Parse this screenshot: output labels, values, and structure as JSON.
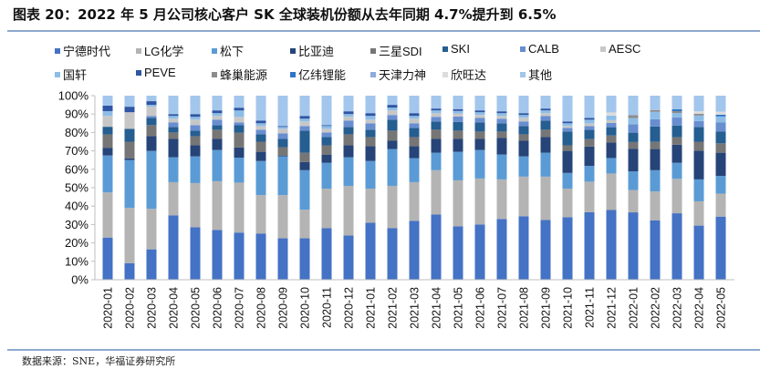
{
  "header": {
    "title": "图表 20：2022 年 5 月公司核心客户 SK 全球装机份额从去年同期 4.7%提升到 6.5%"
  },
  "footer": {
    "source": "数据来源：SNE，华福证券研究所"
  },
  "chart_data": {
    "type": "bar",
    "stacked": true,
    "normalized": true,
    "title": "2022 年 5 月公司核心客户 SK 全球装机份额从去年同期 4.7%提升到 6.5%",
    "xlabel": "",
    "ylabel": "",
    "ylim": [
      0,
      100
    ],
    "y_ticks": [
      "0%",
      "10%",
      "20%",
      "30%",
      "40%",
      "50%",
      "60%",
      "70%",
      "80%",
      "90%",
      "100%"
    ],
    "grid": false,
    "legend_position": "top",
    "categories": [
      "2020-01",
      "2020-02",
      "2020-03",
      "2020-04",
      "2020-05",
      "2020-06",
      "2020-07",
      "2020-08",
      "2020-09",
      "2020-10",
      "2020-11",
      "2020-12",
      "2021-01",
      "2021-02",
      "2021-03",
      "2021-04",
      "2021-05",
      "2021-06",
      "2021-07",
      "2021-08",
      "2021-09",
      "2021-10",
      "2021-11",
      "2021-12",
      "2022-01",
      "2022-02",
      "2022-03",
      "2022-04",
      "2022-05"
    ],
    "series": [
      {
        "name": "宁德时代",
        "color": "#4472C4",
        "values": [
          22.9,
          9.0,
          16.5,
          35.0,
          28.5,
          27.0,
          25.5,
          25.0,
          22.5,
          22.5,
          28.0,
          24.0,
          31.0,
          28.0,
          32.0,
          35.5,
          29.0,
          30.0,
          33.0,
          34.5,
          32.5,
          34.0,
          36.5,
          37.8,
          36.6,
          32.2,
          36.1,
          29.4,
          34.3
        ]
      },
      {
        "name": "LG化学",
        "color": "#B4B4B4",
        "values": [
          24.5,
          30.0,
          22.0,
          18.0,
          24.0,
          26.5,
          27.0,
          21.0,
          23.5,
          15.5,
          21.5,
          27.0,
          18.5,
          23.0,
          21.0,
          24.0,
          25.0,
          25.0,
          21.5,
          21.5,
          23.5,
          15.5,
          16.5,
          19.8,
          12.1,
          15.8,
          18.7,
          13.2,
          12.5
        ]
      },
      {
        "name": "松下",
        "color": "#5B9BD5",
        "values": [
          20.1,
          26.0,
          31.5,
          13.5,
          14.5,
          17.0,
          13.5,
          18.5,
          21.0,
          21.5,
          14.0,
          15.5,
          15.0,
          20.0,
          13.0,
          9.5,
          15.5,
          15.5,
          13.5,
          11.0,
          13.0,
          8.5,
          8.5,
          8.4,
          10.2,
          11.5,
          8.7,
          11.9,
          9.6
        ]
      },
      {
        "name": "比亚迪",
        "color": "#264478",
        "values": [
          4.2,
          1.0,
          8.0,
          10.0,
          6.0,
          6.0,
          5.5,
          5.0,
          0.5,
          4.5,
          4.5,
          6.5,
          8.0,
          4.5,
          6.5,
          7.5,
          7.0,
          6.0,
          9.0,
          8.5,
          8.5,
          12.0,
          10.5,
          8.4,
          12.3,
          11.5,
          9.9,
          15.6,
          12.6
        ]
      },
      {
        "name": "三星SDI",
        "color": "#767676",
        "values": [
          7.2,
          9.0,
          6.0,
          3.5,
          5.0,
          5.0,
          8.0,
          5.5,
          4.5,
          5.0,
          5.0,
          6.0,
          5.0,
          5.5,
          5.0,
          5.0,
          4.5,
          4.0,
          3.5,
          3.5,
          4.0,
          3.0,
          4.0,
          3.8,
          3.6,
          3.9,
          4.0,
          4.9,
          5.1
        ]
      },
      {
        "name": "SKI",
        "color": "#255E91",
        "values": [
          4.2,
          7.0,
          4.0,
          3.0,
          3.0,
          2.5,
          4.0,
          4.0,
          4.5,
          12.0,
          4.5,
          4.0,
          4.0,
          6.0,
          5.0,
          4.5,
          4.7,
          5.0,
          4.5,
          4.5,
          5.0,
          7.5,
          5.0,
          4.5,
          5.1,
          8.3,
          6.4,
          8.0,
          6.5
        ]
      },
      {
        "name": "CALB",
        "color": "#698ED0",
        "values": [
          0,
          0,
          1.0,
          2.5,
          3.0,
          3.0,
          1.5,
          2.5,
          3.0,
          2.5,
          2.5,
          3.5,
          3.5,
          2.5,
          2.5,
          2.5,
          3.0,
          2.5,
          2.5,
          2.5,
          2.5,
          2.0,
          2.0,
          2.3,
          4.6,
          4.0,
          4.3,
          3.2,
          4.8
        ]
      },
      {
        "name": "AESC",
        "color": "#C7C7C7",
        "values": [
          5.9,
          9.0,
          5.0,
          2.0,
          3.0,
          2.0,
          3.0,
          2.0,
          2.5,
          2.5,
          2.0,
          2.0,
          2.0,
          2.5,
          2.5,
          2.0,
          1.5,
          1.5,
          1.5,
          2.0,
          1.5,
          1.0,
          1.5,
          1.5,
          0,
          0,
          0,
          0,
          0
        ]
      },
      {
        "name": "国轩",
        "color": "#8DBDE6",
        "values": [
          2.6,
          0,
          1.0,
          1.5,
          1.5,
          1.5,
          3.5,
          1.5,
          1.0,
          1.5,
          1.5,
          1.5,
          2.0,
          1.5,
          1.5,
          1.5,
          1.5,
          1.5,
          1.5,
          1.5,
          1.5,
          1.5,
          2.0,
          2.5,
          3.3,
          4.0,
          2.5,
          3.0,
          3.3
        ]
      },
      {
        "name": "PEVE",
        "color": "#2F55A4",
        "values": [
          3.0,
          3.0,
          2.0,
          1.0,
          1.5,
          1.5,
          1.5,
          1.5,
          0.5,
          1.5,
          0.5,
          1.5,
          1.5,
          1.5,
          1.5,
          1.0,
          1.0,
          1.0,
          1.0,
          1.0,
          1.0,
          1.0,
          1.0,
          0,
          0,
          0,
          0,
          0,
          0
        ]
      },
      {
        "name": "蜂巢能源",
        "color": "#8C8C8C",
        "values": [
          0,
          0,
          0,
          0,
          0,
          0,
          0,
          0,
          0,
          0,
          0,
          0,
          0,
          0,
          0,
          0,
          0,
          0,
          0,
          0,
          0,
          0,
          0,
          0,
          1.6,
          1.0,
          1.0,
          1.0,
          0
        ]
      },
      {
        "name": "亿纬锂能",
        "color": "#2E75C6",
        "values": [
          0,
          0,
          0,
          0,
          0,
          0,
          0,
          0,
          0,
          0,
          0,
          0,
          0,
          0,
          0,
          0,
          0,
          0,
          0,
          0,
          0,
          0,
          0,
          0,
          0,
          0,
          1.0,
          0,
          1.0
        ]
      },
      {
        "name": "天津力神",
        "color": "#8FAADC",
        "values": [
          0,
          0,
          0,
          0,
          0,
          0,
          0,
          0,
          0,
          0,
          0,
          0,
          0,
          0,
          0,
          0,
          0,
          0,
          0,
          0,
          0,
          0,
          0,
          0,
          0,
          0,
          0,
          0,
          0
        ]
      },
      {
        "name": "欣旺达",
        "color": "#DCDCDC",
        "values": [
          0,
          0,
          0,
          0,
          0,
          0,
          0,
          0,
          0,
          0,
          0,
          0,
          0,
          0,
          0,
          0,
          0,
          0,
          0,
          0,
          0,
          0,
          0,
          1.7,
          0,
          0,
          0,
          1.3,
          1.6
        ]
      },
      {
        "name": "其他",
        "color": "#A3C6EC",
        "values": [
          5.4,
          6.0,
          3.0,
          10.0,
          10.0,
          8.0,
          6.5,
          13.5,
          16.5,
          11.0,
          16.0,
          8.5,
          9.5,
          5.0,
          9.5,
          7.0,
          7.3,
          8.0,
          8.5,
          9.5,
          7.0,
          14.0,
          12.0,
          9.1,
          10.6,
          7.8,
          7.4,
          8.5,
          8.7
        ]
      }
    ]
  }
}
